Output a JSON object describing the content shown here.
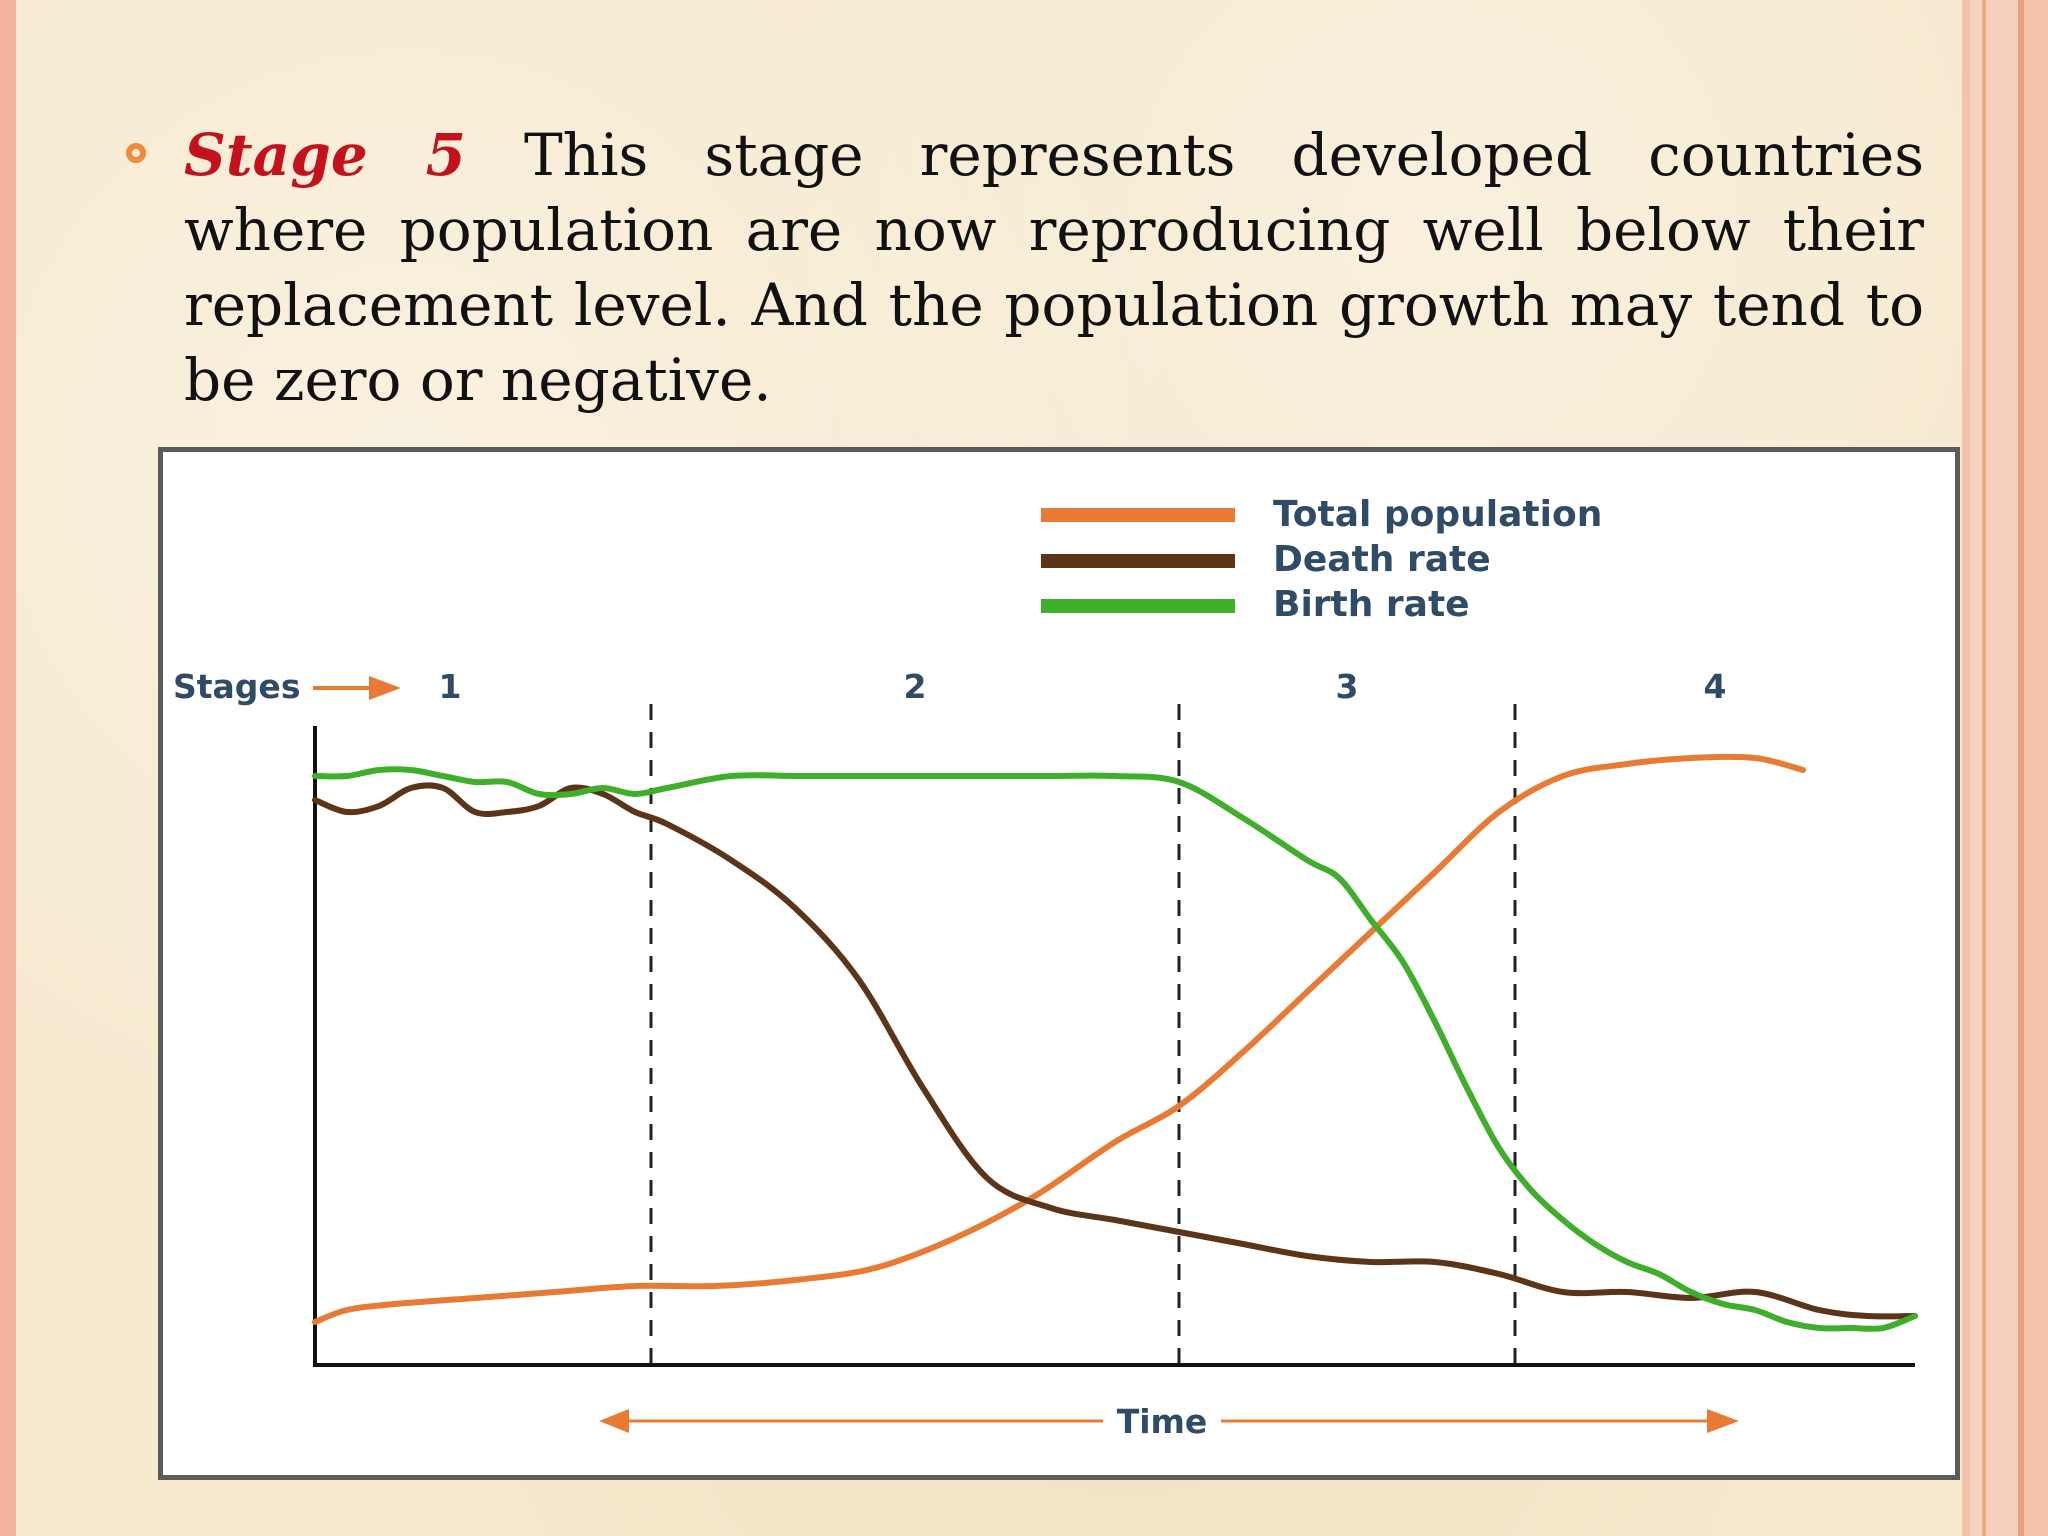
{
  "slide": {
    "stage_label": "Stage 5",
    "description": "This stage represents developed countries where population are now reproducing well below their replacement level. And the population growth may tend to be zero or negative."
  },
  "colors": {
    "stage_label": "#c4111b",
    "bullet": "#f08a3c",
    "total_population": "#e87a33",
    "death_rate": "#5c3519",
    "birth_rate": "#3fae2a"
  },
  "chart_data": {
    "type": "line",
    "title": "",
    "xlabel": "Time",
    "ylabel": "",
    "stages_label": "Stages",
    "stages": [
      "1",
      "2",
      "3",
      "4"
    ],
    "stage_boundaries": [
      21,
      54,
      75
    ],
    "xlim": [
      0,
      100
    ],
    "ylim": [
      0,
      100
    ],
    "grid": false,
    "legend_position": "top",
    "series": [
      {
        "name": "Total population",
        "color": "#e87a33",
        "x": [
          0,
          2,
          5,
          10,
          15,
          20,
          25,
          30,
          35,
          40,
          45,
          50,
          54,
          58,
          62,
          66,
          70,
          74,
          78,
          82,
          86,
          90,
          93
        ],
        "y": [
          5,
          7,
          8,
          9,
          10,
          11,
          11,
          12,
          14,
          19,
          26,
          35,
          41,
          50,
          60,
          70,
          80,
          90,
          96,
          98,
          99,
          99,
          97
        ]
      },
      {
        "name": "Death rate",
        "color": "#5c3519",
        "x": [
          0,
          2,
          4,
          6,
          8,
          10,
          12,
          14,
          16,
          18,
          20,
          22,
          26,
          30,
          34,
          38,
          42,
          46,
          50,
          54,
          58,
          62,
          66,
          70,
          74,
          78,
          82,
          86,
          90,
          94,
          97,
          100
        ],
        "y": [
          92,
          90,
          91,
          94,
          94,
          90,
          90,
          91,
          94,
          93,
          90,
          88,
          82,
          74,
          62,
          44,
          29,
          24,
          22,
          20,
          18,
          16,
          15,
          15,
          13,
          10,
          10,
          9,
          10,
          7,
          6,
          6
        ]
      },
      {
        "name": "Birth rate",
        "color": "#3fae2a",
        "x": [
          0,
          2,
          4,
          6,
          8,
          10,
          12,
          14,
          16,
          18,
          20,
          22,
          26,
          30,
          34,
          38,
          42,
          46,
          50,
          54,
          58,
          62,
          64,
          66,
          68,
          70,
          72,
          74,
          76,
          78,
          80,
          82,
          84,
          86,
          88,
          90,
          92,
          94,
          96,
          98,
          100
        ],
        "y": [
          96,
          96,
          97,
          97,
          96,
          95,
          95,
          93,
          93,
          94,
          93,
          94,
          96,
          96,
          96,
          96,
          96,
          96,
          96,
          95,
          89,
          82,
          79,
          72,
          65,
          55,
          44,
          34,
          27,
          22,
          18,
          15,
          13,
          10,
          8,
          7,
          5,
          4,
          4,
          4,
          6
        ]
      }
    ]
  }
}
